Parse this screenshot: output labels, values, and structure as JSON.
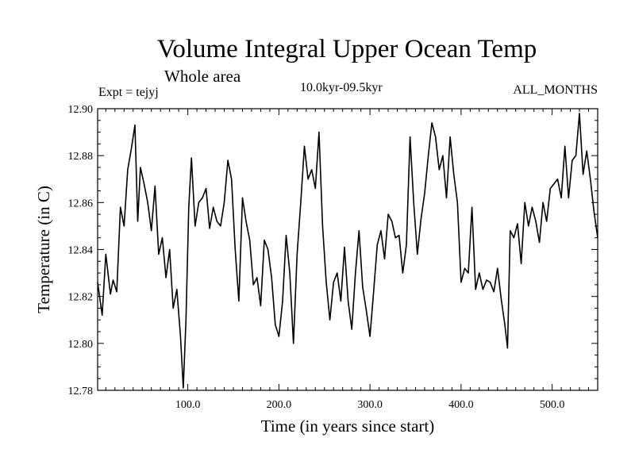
{
  "chart_data": {
    "type": "line",
    "title": "Volume Integral Upper Ocean Temp",
    "subtitle": "Whole area",
    "experiment": "Expt = tejyj",
    "period": "10.0kyr-09.5kyr",
    "season": "ALL_MONTHS",
    "xlabel": "Time (in years since start)",
    "ylabel": "Temperature (in C)",
    "xlim": [
      1,
      550
    ],
    "ylim": [
      12.78,
      12.9
    ],
    "xticks": [
      100,
      200,
      300,
      400,
      500
    ],
    "xtick_labels": [
      "100.0",
      "200.0",
      "300.0",
      "400.0",
      "500.0"
    ],
    "yticks": [
      12.78,
      12.8,
      12.82,
      12.84,
      12.86,
      12.88,
      12.9
    ],
    "ytick_labels": [
      "12.78",
      "12.80",
      "12.82",
      "12.84",
      "12.86",
      "12.88",
      "12.90"
    ],
    "series": [
      {
        "name": "Volume Integral Upper Ocean Temp",
        "x": [
          1,
          6,
          10,
          15,
          18,
          22,
          26,
          30,
          34,
          38,
          42,
          45,
          48,
          52,
          56,
          60,
          64,
          68,
          72,
          76,
          80,
          84,
          88,
          92,
          95,
          98,
          101,
          104,
          108,
          112,
          116,
          120,
          124,
          128,
          132,
          136,
          140,
          144,
          148,
          152,
          156,
          160,
          164,
          168,
          172,
          176,
          180,
          184,
          188,
          192,
          196,
          200,
          204,
          208,
          212,
          216,
          220,
          224,
          228,
          232,
          236,
          240,
          244,
          248,
          252,
          256,
          260,
          264,
          268,
          272,
          276,
          280,
          284,
          288,
          292,
          296,
          300,
          304,
          308,
          312,
          316,
          320,
          324,
          328,
          332,
          336,
          340,
          344,
          348,
          352,
          356,
          360,
          364,
          368,
          372,
          376,
          380,
          384,
          388,
          392,
          396,
          400,
          404,
          408,
          412,
          416,
          420,
          424,
          428,
          432,
          436,
          440,
          444,
          448,
          451,
          454,
          458,
          462,
          466,
          470,
          474,
          478,
          482,
          486,
          490,
          494,
          498,
          502,
          506,
          510,
          514,
          518,
          522,
          526,
          530,
          534,
          538,
          542,
          546,
          550
        ],
        "y": [
          12.826,
          12.812,
          12.838,
          12.821,
          12.827,
          12.822,
          12.858,
          12.85,
          12.874,
          12.883,
          12.893,
          12.852,
          12.875,
          12.868,
          12.86,
          12.848,
          12.867,
          12.838,
          12.845,
          12.828,
          12.84,
          12.815,
          12.823,
          12.803,
          12.781,
          12.81,
          12.858,
          12.879,
          12.85,
          12.86,
          12.862,
          12.866,
          12.849,
          12.858,
          12.852,
          12.85,
          12.86,
          12.878,
          12.87,
          12.84,
          12.818,
          12.862,
          12.852,
          12.844,
          12.825,
          12.828,
          12.816,
          12.844,
          12.84,
          12.828,
          12.808,
          12.803,
          12.818,
          12.846,
          12.83,
          12.8,
          12.838,
          12.86,
          12.884,
          12.87,
          12.874,
          12.866,
          12.89,
          12.85,
          12.826,
          12.81,
          12.826,
          12.83,
          12.818,
          12.841,
          12.818,
          12.806,
          12.83,
          12.848,
          12.824,
          12.814,
          12.803,
          12.822,
          12.842,
          12.848,
          12.836,
          12.855,
          12.852,
          12.845,
          12.846,
          12.83,
          12.842,
          12.888,
          12.86,
          12.838,
          12.853,
          12.864,
          12.88,
          12.894,
          12.888,
          12.874,
          12.88,
          12.862,
          12.888,
          12.872,
          12.86,
          12.826,
          12.832,
          12.83,
          12.858,
          12.823,
          12.83,
          12.823,
          12.827,
          12.826,
          12.822,
          12.832,
          12.819,
          12.808,
          12.798,
          12.848,
          12.845,
          12.851,
          12.834,
          12.86,
          12.85,
          12.858,
          12.852,
          12.843,
          12.86,
          12.852,
          12.866,
          12.868,
          12.87,
          12.862,
          12.884,
          12.862,
          12.878,
          12.88,
          12.898,
          12.872,
          12.882,
          12.87,
          12.856,
          12.845
        ]
      }
    ]
  }
}
